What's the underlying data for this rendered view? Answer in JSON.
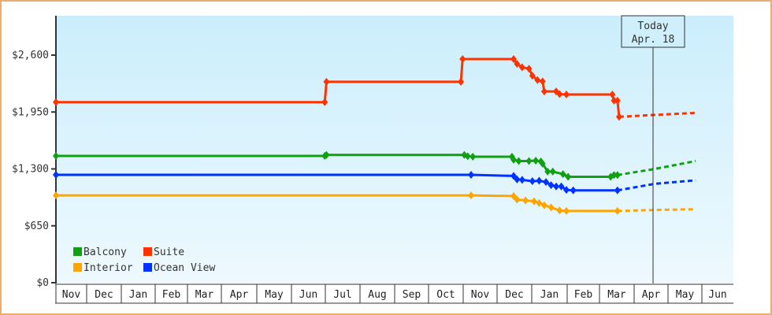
{
  "chart_data": {
    "type": "line",
    "title": "",
    "xlabel": "",
    "ylabel": "",
    "ylim": [
      0,
      2925
    ],
    "y_ticks": [
      "$0",
      "$650",
      "$1,300",
      "$1,950",
      "$2,600"
    ],
    "y_tick_values": [
      0,
      650,
      1300,
      1950,
      2600
    ],
    "x_ticks": [
      "Nov",
      "Dec",
      "Jan",
      "Feb",
      "Mar",
      "Apr",
      "May",
      "Jun",
      "Jul",
      "Aug",
      "Sep",
      "Oct",
      "Nov",
      "Dec",
      "Jan",
      "Feb",
      "Mar",
      "Apr",
      "May",
      "Jun"
    ],
    "grid": false,
    "legend_position": "lower-left",
    "annotation": {
      "label_line1": "Today",
      "label_line2": "Apr. 18"
    },
    "series": [
      {
        "name": "Balcony",
        "color": "#11a011",
        "points": [
          [
            0,
            1448
          ],
          [
            7.9,
            1448
          ],
          [
            7.95,
            1460
          ],
          [
            12,
            1460
          ],
          [
            12.1,
            1445
          ],
          [
            12.25,
            1440
          ],
          [
            13.4,
            1440
          ],
          [
            13.45,
            1405
          ],
          [
            13.6,
            1390
          ],
          [
            13.9,
            1390
          ],
          [
            14.1,
            1395
          ],
          [
            14.25,
            1385
          ],
          [
            14.3,
            1360
          ],
          [
            14.45,
            1270
          ],
          [
            14.6,
            1270
          ],
          [
            14.9,
            1240
          ],
          [
            15.05,
            1210
          ],
          [
            15.3,
            1210
          ],
          [
            16.3,
            1210
          ],
          [
            16.4,
            1230
          ],
          [
            16.5,
            1230
          ]
        ],
        "forecast": [
          [
            16.5,
            1230
          ],
          [
            17.6,
            1300
          ],
          [
            18.8,
            1390
          ]
        ]
      },
      {
        "name": "Suite",
        "color": "#ff3300",
        "points": [
          [
            0,
            2063
          ],
          [
            7.9,
            2063
          ],
          [
            7.95,
            2295
          ],
          [
            11.9,
            2295
          ],
          [
            11.95,
            2555
          ],
          [
            13.45,
            2555
          ],
          [
            13.55,
            2500
          ],
          [
            13.7,
            2460
          ],
          [
            13.9,
            2445
          ],
          [
            14.0,
            2365
          ],
          [
            14.15,
            2315
          ],
          [
            14.3,
            2300
          ],
          [
            14.35,
            2185
          ],
          [
            14.7,
            2185
          ],
          [
            14.8,
            2155
          ],
          [
            15.0,
            2150
          ],
          [
            15.1,
            2150
          ],
          [
            16.35,
            2150
          ],
          [
            16.4,
            2080
          ],
          [
            16.5,
            2080
          ],
          [
            16.55,
            1895
          ]
        ],
        "forecast": [
          [
            16.55,
            1895
          ],
          [
            17.5,
            1915
          ],
          [
            18.8,
            1940
          ]
        ]
      },
      {
        "name": "Interior",
        "color": "#ffa500",
        "points": [
          [
            0,
            998
          ],
          [
            12.2,
            998
          ],
          [
            13.45,
            990
          ],
          [
            13.55,
            950
          ],
          [
            13.8,
            940
          ],
          [
            14.05,
            930
          ],
          [
            14.2,
            910
          ],
          [
            14.35,
            885
          ],
          [
            14.55,
            860
          ],
          [
            14.8,
            825
          ],
          [
            15.0,
            820
          ],
          [
            16.5,
            820
          ]
        ],
        "forecast": [
          [
            16.5,
            820
          ],
          [
            17.5,
            830
          ],
          [
            18.8,
            840
          ]
        ]
      },
      {
        "name": "Ocean View",
        "color": "#0033ff",
        "points": [
          [
            0,
            1232
          ],
          [
            12.2,
            1232
          ],
          [
            13.45,
            1220
          ],
          [
            13.55,
            1180
          ],
          [
            13.7,
            1175
          ],
          [
            14.0,
            1160
          ],
          [
            14.2,
            1165
          ],
          [
            14.4,
            1150
          ],
          [
            14.55,
            1115
          ],
          [
            14.7,
            1100
          ],
          [
            14.85,
            1100
          ],
          [
            15.0,
            1060
          ],
          [
            15.2,
            1055
          ],
          [
            16.35,
            1055
          ],
          [
            16.5,
            1055
          ]
        ],
        "forecast": [
          [
            16.5,
            1055
          ],
          [
            17.6,
            1130
          ],
          [
            18.8,
            1170
          ]
        ]
      }
    ]
  },
  "legend": [
    {
      "label": "Balcony",
      "color": "#11a011"
    },
    {
      "label": "Suite",
      "color": "#ff3300"
    },
    {
      "label": "Interior",
      "color": "#ffa500"
    },
    {
      "label": "Ocean View",
      "color": "#0033ff"
    }
  ],
  "today_marker": {
    "line1": "Today",
    "line2": "Apr. 18"
  }
}
